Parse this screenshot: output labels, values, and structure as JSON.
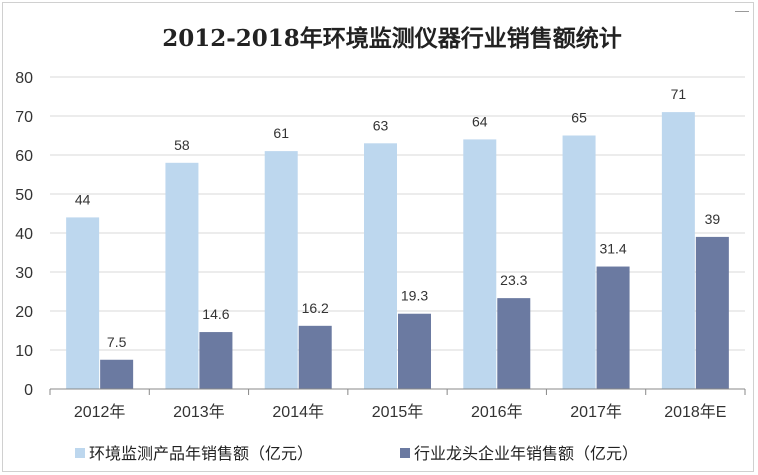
{
  "chart_data": {
    "type": "bar",
    "title": "2012-2018年环境监测仪器行业销售额统计",
    "categories": [
      "2012年",
      "2013年",
      "2014年",
      "2015年",
      "2016年",
      "2017年",
      "2018年E"
    ],
    "series": [
      {
        "name": "环境监测产品年销售额（亿元）",
        "color": "#bdd7ee",
        "values": [
          44,
          58,
          61,
          63,
          64,
          65,
          71
        ],
        "labels": [
          "44",
          "58",
          "61",
          "63",
          "64",
          "65",
          "71"
        ]
      },
      {
        "name": "行业龙头企业年销售额（亿元）",
        "color": "#6b7aa1",
        "values": [
          7.5,
          14.6,
          16.2,
          19.3,
          23.3,
          31.4,
          39
        ],
        "labels": [
          "7.5",
          "14.6",
          "16.2",
          "19.3",
          "23.3",
          "31.4",
          "39"
        ]
      }
    ],
    "ylim": [
      0,
      80
    ],
    "yticks": [
      "0",
      "10",
      "20",
      "30",
      "40",
      "50",
      "60",
      "70",
      "80"
    ],
    "grid": true,
    "legend": "bottom"
  }
}
